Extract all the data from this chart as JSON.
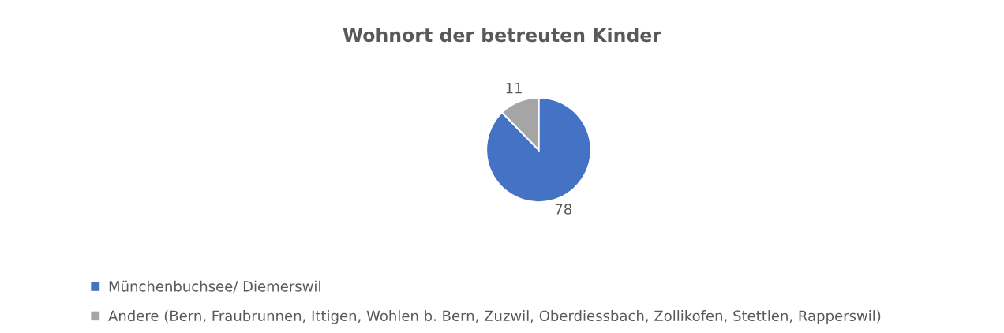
{
  "chart_data": {
    "type": "pie",
    "title": "Wohnort der betreuten Kinder",
    "categories": [
      "Münchenbuchsee/ Diemerswil",
      "Andere (Bern, Fraubrunnen, Ittigen, Wohlen b. Bern, Zuzwil, Oberdiessbach, Zollikofen, Stettlen, Rapperswil)"
    ],
    "values": [
      78,
      11
    ],
    "colors": [
      "#4472c4",
      "#a5a5a5"
    ],
    "data_labels": true,
    "legend": "bottom left"
  }
}
